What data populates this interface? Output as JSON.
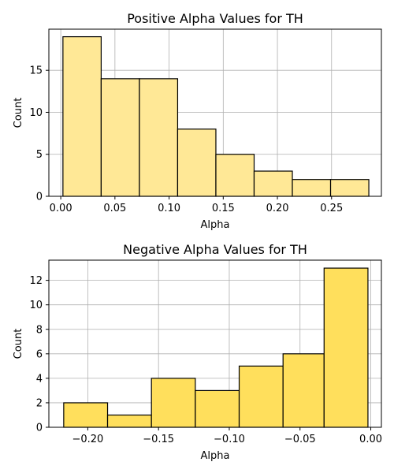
{
  "chart_data": [
    {
      "type": "bar",
      "title": "Positive Alpha Values for TH",
      "xlabel": "Alpha",
      "ylabel": "Count",
      "color": "#FFE896",
      "edgecolor": "#000000",
      "grid": true,
      "xlim": [
        -0.011,
        0.296
      ],
      "ylim": [
        0,
        19.9
      ],
      "xticks": [
        0.0,
        0.05,
        0.1,
        0.15,
        0.2,
        0.25
      ],
      "xtick_labels": [
        "0.00",
        "0.05",
        "0.10",
        "0.15",
        "0.20",
        "0.25"
      ],
      "yticks": [
        0,
        5,
        10,
        15
      ],
      "ytick_labels": [
        "0",
        "5",
        "10",
        "15"
      ],
      "bin_edges": [
        0.002,
        0.0373,
        0.0726,
        0.1079,
        0.1432,
        0.1785,
        0.2138,
        0.2491,
        0.2844
      ],
      "values": [
        19,
        14,
        14,
        8,
        5,
        3,
        2,
        2
      ]
    },
    {
      "type": "bar",
      "title": "Negative Alpha Values for TH",
      "xlabel": "Alpha",
      "ylabel": "Count",
      "color": "#FFDF5C",
      "edgecolor": "#000000",
      "grid": true,
      "xlim": [
        -0.2275,
        0.0075
      ],
      "ylim": [
        0,
        13.65
      ],
      "xticks": [
        -0.2,
        -0.15,
        -0.1,
        -0.05,
        0.0
      ],
      "xtick_labels": [
        "−0.20",
        "−0.15",
        "−0.10",
        "−0.05",
        "0.00"
      ],
      "yticks": [
        0,
        2,
        4,
        6,
        8,
        10,
        12
      ],
      "ytick_labels": [
        "0",
        "2",
        "4",
        "6",
        "8",
        "10",
        "12"
      ],
      "bin_edges": [
        -0.217,
        -0.186,
        -0.155,
        -0.124,
        -0.093,
        -0.062,
        -0.033,
        -0.002
      ],
      "values": [
        2,
        1,
        4,
        3,
        5,
        6,
        13
      ]
    }
  ]
}
